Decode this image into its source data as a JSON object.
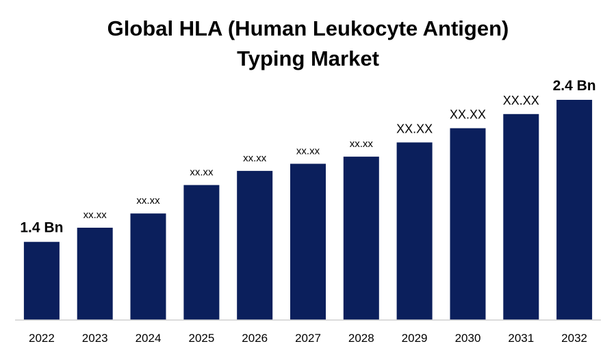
{
  "chart_data": {
    "type": "bar",
    "title_lines": [
      "Global HLA (Human Leukocyte Antigen)",
      "Typing Market"
    ],
    "categories": [
      "2022",
      "2023",
      "2024",
      "2025",
      "2026",
      "2027",
      "2028",
      "2029",
      "2030",
      "2031",
      "2032"
    ],
    "values": [
      1.4,
      1.5,
      1.6,
      1.8,
      1.9,
      1.95,
      2.0,
      2.1,
      2.2,
      2.3,
      2.4
    ],
    "data_labels": [
      "1.4 Bn",
      "xx.xx",
      "xx.xx",
      "xx.xx",
      "xx.xx",
      "xx.xx",
      "xx.xx",
      "XX.XX",
      "XX.XX",
      "XX.XX",
      "2.4 Bn"
    ],
    "bar_color": "#0b1f5c",
    "ylim": [
      0.85,
      2.4
    ],
    "grid": false,
    "legend": "none",
    "xlabel": "",
    "ylabel": ""
  }
}
